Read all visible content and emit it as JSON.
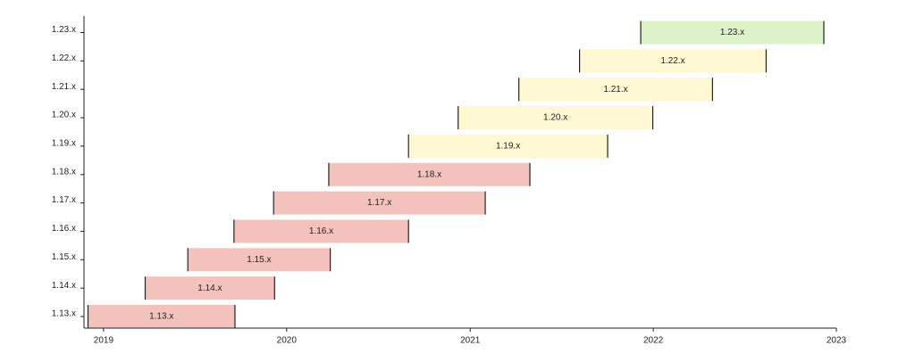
{
  "chart_data": {
    "type": "bar",
    "orientation": "horizontal",
    "title": "",
    "xlabel": "",
    "ylabel": "",
    "x_axis": "time",
    "xlim": [
      "2018-11-23",
      "2023-01-01"
    ],
    "x_ticks": [
      "2019",
      "2020",
      "2021",
      "2022",
      "2023"
    ],
    "categories": [
      "1.13.x",
      "1.14.x",
      "1.15.x",
      "1.16.x",
      "1.17.x",
      "1.18.x",
      "1.19.x",
      "1.20.x",
      "1.21.x",
      "1.22.x",
      "1.23.x"
    ],
    "bars": [
      {
        "label": "1.13.x",
        "start": "2018-12-01",
        "end": "2019-09-20",
        "color": "#f4c2bc"
      },
      {
        "label": "1.14.x",
        "start": "2019-03-25",
        "end": "2019-12-08",
        "color": "#f4c2bc"
      },
      {
        "label": "1.15.x",
        "start": "2019-06-18",
        "end": "2020-03-28",
        "color": "#f4c2bc"
      },
      {
        "label": "1.16.x",
        "start": "2019-09-18",
        "end": "2020-08-31",
        "color": "#f4c2bc"
      },
      {
        "label": "1.17.x",
        "start": "2019-12-06",
        "end": "2021-01-31",
        "color": "#f4c2bc"
      },
      {
        "label": "1.18.x",
        "start": "2020-03-25",
        "end": "2021-04-30",
        "color": "#f4c2bc"
      },
      {
        "label": "1.19.x",
        "start": "2020-08-31",
        "end": "2021-10-02",
        "color": "#fdf8d2"
      },
      {
        "label": "1.20.x",
        "start": "2020-12-08",
        "end": "2021-12-31",
        "color": "#fdf8d2"
      },
      {
        "label": "1.21.x",
        "start": "2021-04-08",
        "end": "2022-04-29",
        "color": "#fdf8d2"
      },
      {
        "label": "1.22.x",
        "start": "2021-08-07",
        "end": "2022-08-14",
        "color": "#fdf8d2"
      },
      {
        "label": "1.23.x",
        "start": "2021-12-07",
        "end": "2022-12-07",
        "color": "#dcf3c9"
      }
    ],
    "grid": false,
    "legend": "none"
  }
}
